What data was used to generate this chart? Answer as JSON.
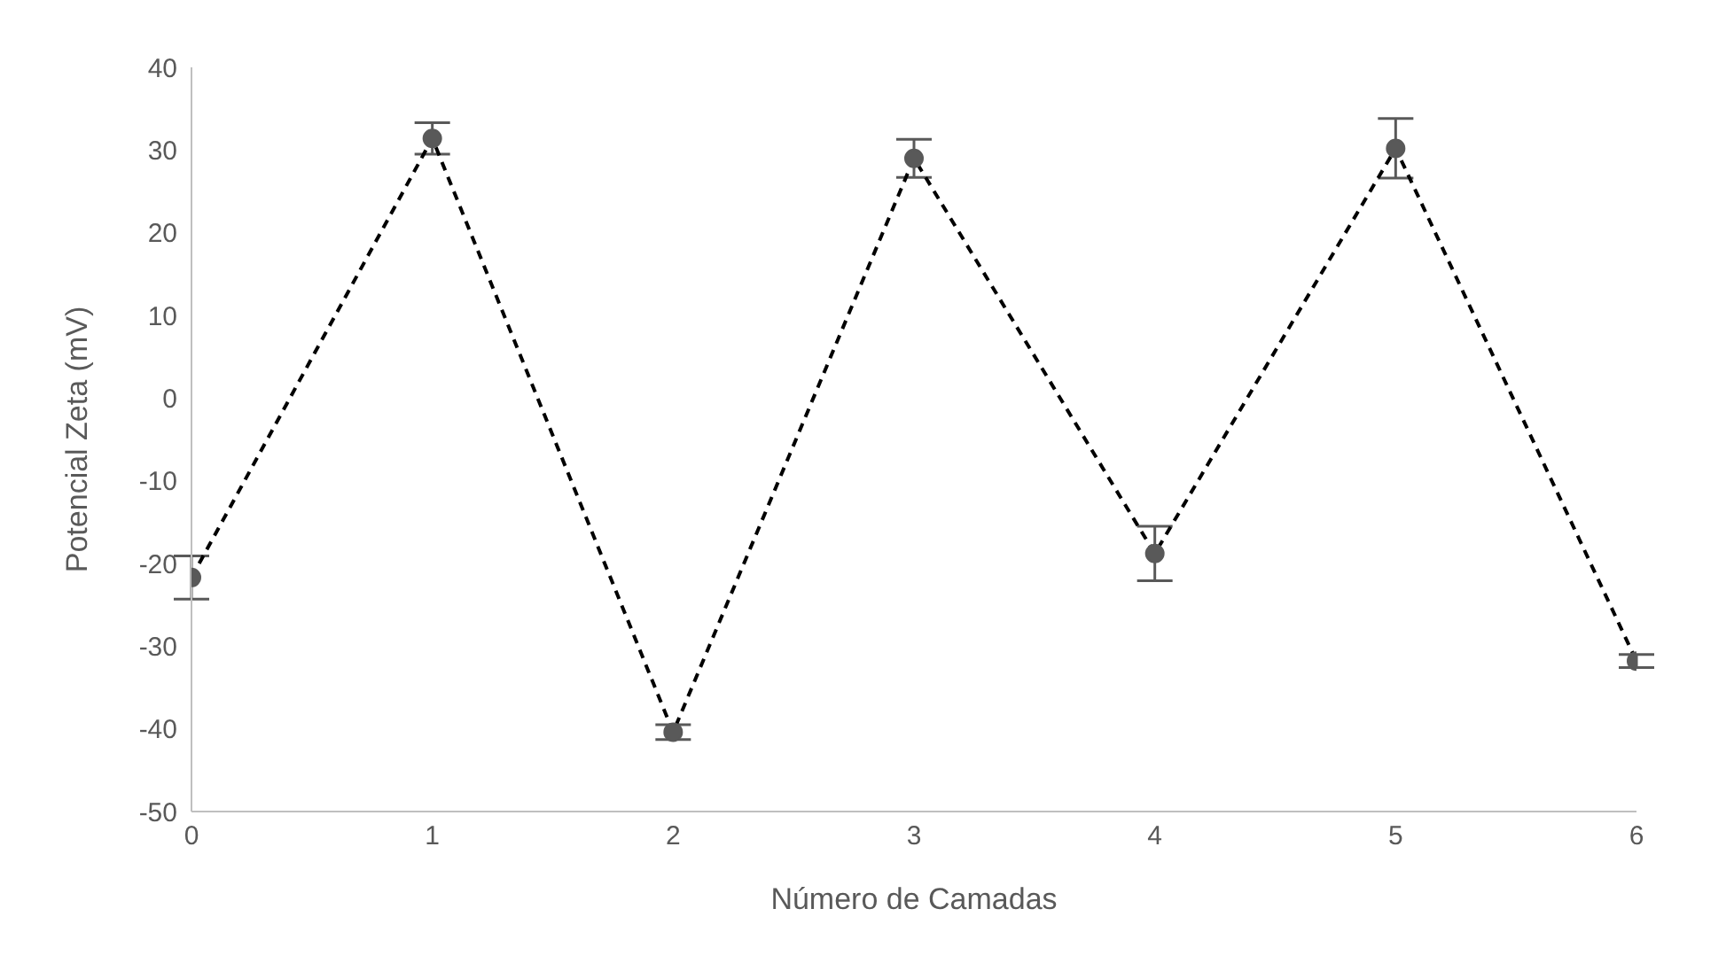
{
  "chart_data": {
    "type": "line",
    "xlabel": "Número de Camadas",
    "ylabel": "Potencial Zeta (mV)",
    "x": [
      0,
      1,
      2,
      3,
      4,
      5,
      6
    ],
    "series": [
      {
        "color": "#595959",
        "values": [
          -21.7,
          31.4,
          -40.4,
          29.0,
          -18.8,
          30.2,
          -31.8
        ],
        "errors": [
          2.6,
          1.9,
          0.9,
          2.3,
          3.3,
          3.6,
          0.8
        ]
      }
    ],
    "xlim": [
      0,
      6
    ],
    "xticks": [
      0,
      1,
      2,
      3,
      4,
      5,
      6
    ],
    "ylim": [
      -50,
      40
    ],
    "yticks": [
      -50,
      -40,
      -30,
      -20,
      -10,
      0,
      10,
      20,
      30,
      40
    ],
    "grid": false,
    "legend": false,
    "marker": "circle",
    "line_style": "dashed"
  }
}
